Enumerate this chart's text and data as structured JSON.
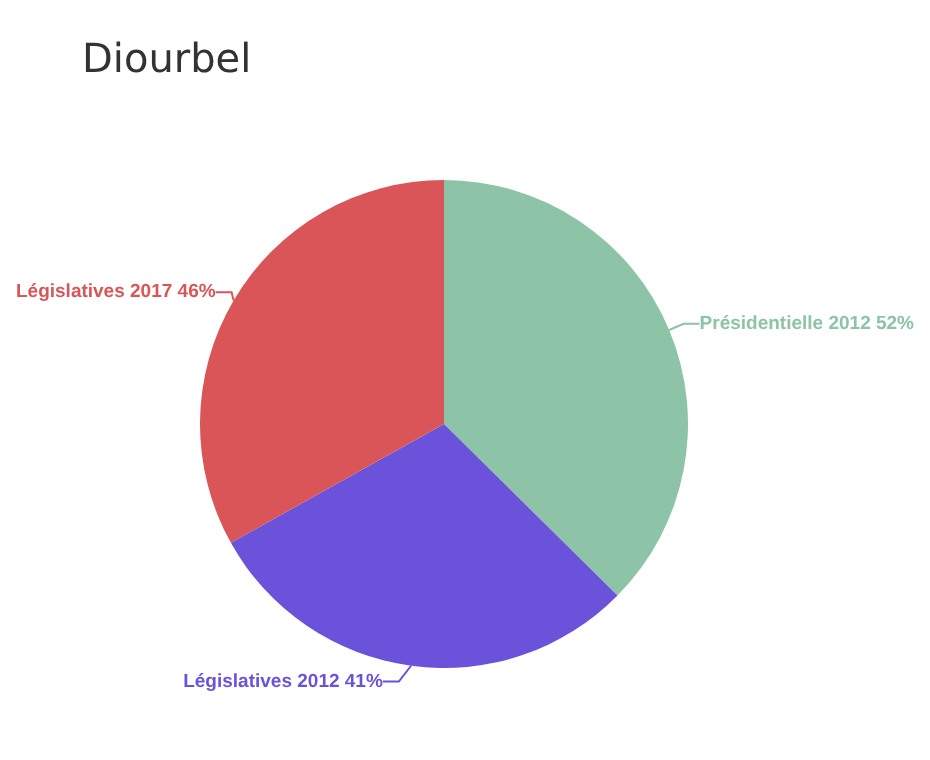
{
  "chart_data": {
    "type": "pie",
    "title": "Diourbel",
    "categories": [
      "Présidentielle 2012",
      "Législatives 2012",
      "Législatives 2017"
    ],
    "values": [
      52,
      41,
      46
    ],
    "value_labels": [
      "52%",
      "41%",
      "46%"
    ],
    "colors": [
      "#8dc3a7",
      "#6b52da",
      "#d95557"
    ],
    "legend": false
  }
}
